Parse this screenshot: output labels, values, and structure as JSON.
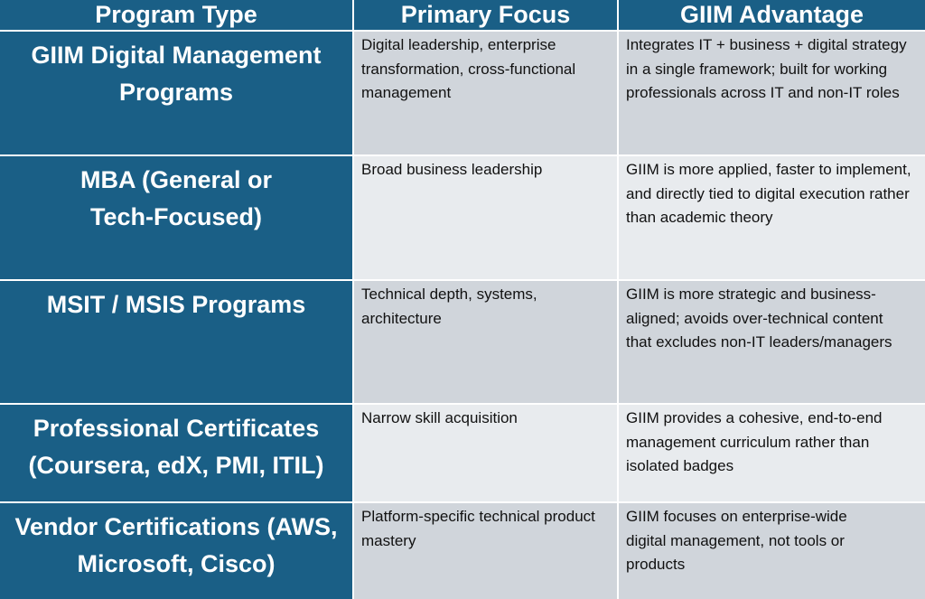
{
  "headers": [
    "Program Type",
    "Primary Focus",
    "GIIM Advantage"
  ],
  "rows": [
    {
      "program": "GIIM Digital Management Programs",
      "focus": "Digital leadership, enterprise transformation, cross-functional management",
      "advantage": "Integrates IT + business + digital strategy in a single framework; built for working professionals across IT and non-IT roles"
    },
    {
      "program": "MBA (General or Tech-Focused)",
      "focus": "Broad business leadership",
      "advantage": "GIIM is more applied, faster to implement, and directly tied to digital execution rather than academic theory"
    },
    {
      "program": "MSIT / MSIS Programs",
      "focus": "Technical depth, systems, architecture",
      "advantage": "GIIM is more strategic and business-aligned; avoids over-technical content that excludes non-IT leaders/managers"
    },
    {
      "program": "Professional Certificates (Coursera, edX, PMI, ITIL)",
      "focus": "Narrow skill acquisition",
      "advantage": "GIIM provides a cohesive, end-to-end management curriculum rather than isolated badges"
    },
    {
      "program": "Vendor Certifications (AWS, Microsoft, Cisco)",
      "focus": "Platform-specific technical product mastery",
      "advantage": "GIIM focuses on enterprise-wide digital management, not tools or products"
    }
  ]
}
